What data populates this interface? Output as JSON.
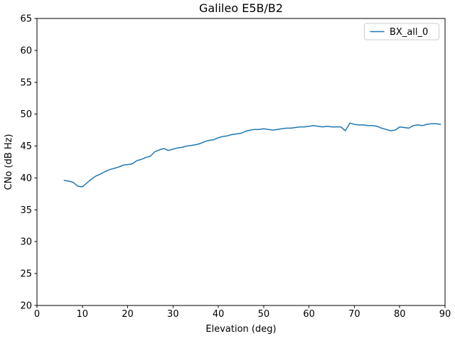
{
  "chart_data": {
    "type": "line",
    "title": "Galileo E5B/B2",
    "xlabel": "Elevation (deg)",
    "ylabel": "CNo (dB Hz)",
    "xlim": [
      0,
      90
    ],
    "ylim": [
      20,
      65
    ],
    "xticks": [
      0,
      10,
      20,
      30,
      40,
      50,
      60,
      70,
      80,
      90
    ],
    "yticks": [
      20,
      25,
      30,
      35,
      40,
      45,
      50,
      55,
      60,
      65
    ],
    "grid": false,
    "legend": {
      "position": "upper right",
      "entries": [
        "BX_all_0"
      ]
    },
    "colors": {
      "series": "#1f77b4",
      "axis": "#000000",
      "legend_border": "#cccccc",
      "background": "#ffffff"
    },
    "series": [
      {
        "name": "BX_all_0",
        "color": "#1f77b4",
        "x": [
          6,
          7,
          8,
          9,
          10,
          11,
          12,
          13,
          14,
          15,
          16,
          17,
          18,
          19,
          20,
          21,
          22,
          23,
          24,
          25,
          26,
          27,
          28,
          29,
          30,
          31,
          32,
          33,
          34,
          35,
          36,
          37,
          38,
          39,
          40,
          41,
          42,
          43,
          44,
          45,
          46,
          47,
          48,
          49,
          50,
          51,
          52,
          53,
          54,
          55,
          56,
          57,
          58,
          59,
          60,
          61,
          62,
          63,
          64,
          65,
          66,
          67,
          68,
          69,
          70,
          71,
          72,
          73,
          74,
          75,
          76,
          77,
          78,
          79,
          80,
          81,
          82,
          83,
          84,
          85,
          86,
          87,
          88,
          89
        ],
        "y": [
          39.6,
          39.5,
          39.3,
          38.7,
          38.6,
          39.2,
          39.8,
          40.3,
          40.6,
          41.0,
          41.3,
          41.5,
          41.7,
          42.0,
          42.1,
          42.2,
          42.7,
          42.9,
          43.2,
          43.4,
          44.1,
          44.4,
          44.6,
          44.3,
          44.5,
          44.7,
          44.8,
          45.0,
          45.1,
          45.2,
          45.4,
          45.7,
          45.9,
          46.0,
          46.3,
          46.5,
          46.6,
          46.8,
          46.9,
          47.0,
          47.3,
          47.5,
          47.6,
          47.6,
          47.7,
          47.6,
          47.5,
          47.6,
          47.7,
          47.8,
          47.8,
          47.9,
          48.0,
          48.0,
          48.1,
          48.2,
          48.1,
          48.0,
          48.1,
          48.0,
          48.0,
          48.0,
          47.4,
          48.6,
          48.4,
          48.3,
          48.3,
          48.2,
          48.2,
          48.1,
          47.8,
          47.6,
          47.4,
          47.5,
          48.0,
          47.9,
          47.8,
          48.2,
          48.3,
          48.2,
          48.4,
          48.5,
          48.5,
          48.4
        ]
      }
    ]
  }
}
